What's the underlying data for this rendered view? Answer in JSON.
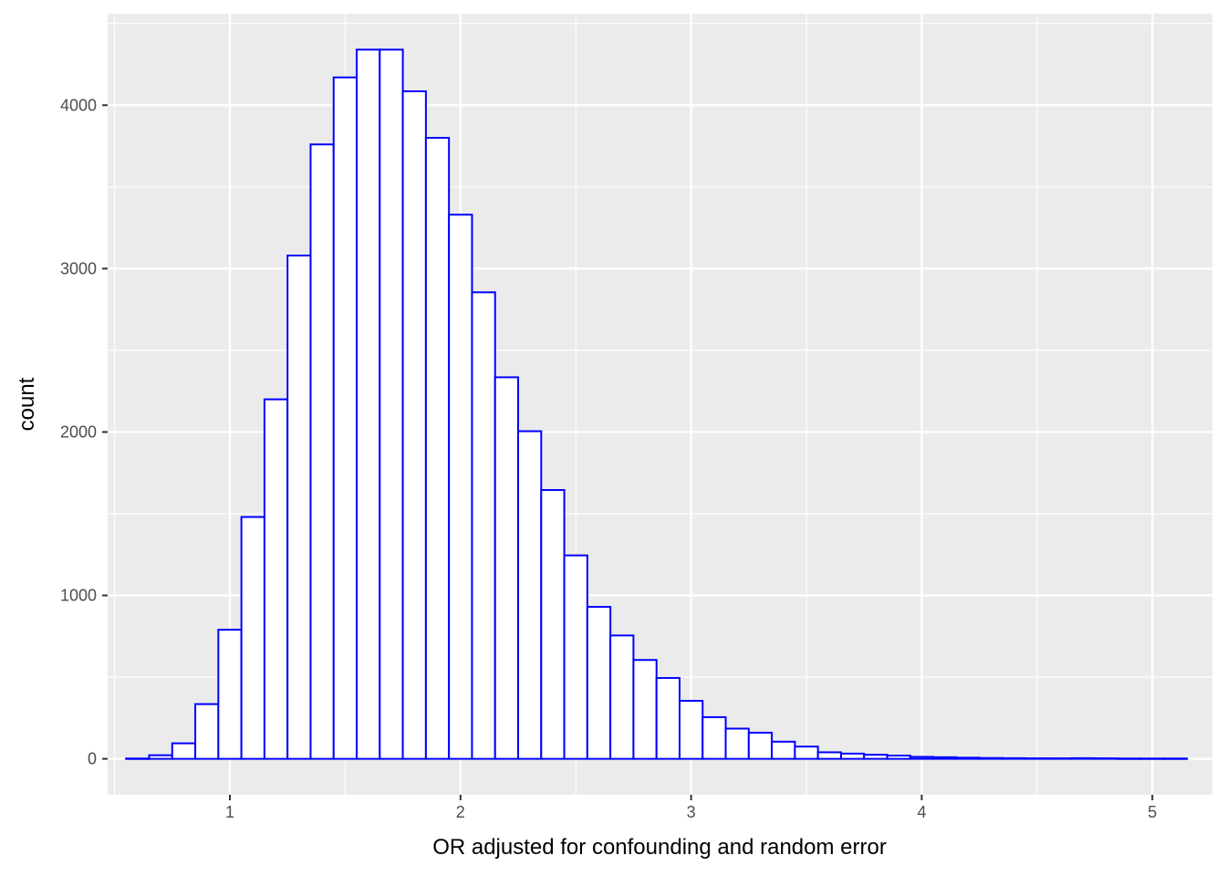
{
  "chart_data": {
    "type": "bar",
    "subtype": "histogram",
    "xlabel": "OR adjusted for confounding and random error",
    "ylabel": "count",
    "xlim": [
      0.47,
      5.26
    ],
    "ylim": [
      -220,
      4560
    ],
    "x_ticks": [
      1,
      2,
      3,
      4,
      5
    ],
    "y_ticks": [
      0,
      1000,
      2000,
      3000,
      4000
    ],
    "grid": true,
    "bin_width": 0.1,
    "bin_centers": [
      0.6,
      0.7,
      0.8,
      0.9,
      1.0,
      1.1,
      1.2,
      1.3,
      1.4,
      1.5,
      1.6,
      1.7,
      1.8,
      1.9,
      2.0,
      2.1,
      2.2,
      2.3,
      2.4,
      2.5,
      2.6,
      2.7,
      2.8,
      2.9,
      3.0,
      3.1,
      3.2,
      3.3,
      3.4,
      3.5,
      3.6,
      3.7,
      3.8,
      3.9,
      4.0,
      4.1,
      4.2,
      4.3,
      4.4,
      4.5,
      4.6,
      4.7,
      4.8,
      4.9,
      5.0,
      5.1
    ],
    "values": [
      2,
      22,
      95,
      335,
      790,
      1480,
      2200,
      3080,
      3760,
      4170,
      4340,
      4340,
      4085,
      3800,
      3330,
      2855,
      2335,
      2005,
      1645,
      1245,
      930,
      755,
      605,
      495,
      355,
      255,
      185,
      160,
      105,
      75,
      40,
      32,
      25,
      20,
      12,
      10,
      7,
      5,
      4,
      3,
      3,
      4,
      3,
      2,
      2,
      2
    ],
    "colors": {
      "panel_background": "#ebebeb",
      "grid": "#ffffff",
      "bar_fill": "#ffffff",
      "bar_outline": "#0000ff"
    }
  }
}
